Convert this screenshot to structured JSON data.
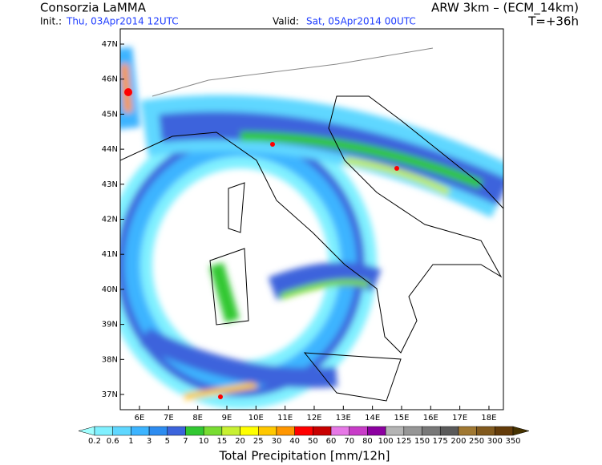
{
  "header": {
    "left_title": "Consorzia LaMMA",
    "right_title": "ARW 3km – (ECM_14km)",
    "init_label": "Init.:",
    "init_value": "Thu, 03Apr2014 12UTC",
    "valid_label": "Valid:",
    "valid_value": "Sat, 05Apr2014 00UTC",
    "lead_time": "T=+36h"
  },
  "map": {
    "lat_ticks": [
      {
        "value": 47,
        "label": "47N"
      },
      {
        "value": 46,
        "label": "46N"
      },
      {
        "value": 45,
        "label": "45N"
      },
      {
        "value": 44,
        "label": "44N"
      },
      {
        "value": 43,
        "label": "43N"
      },
      {
        "value": 42,
        "label": "42N"
      },
      {
        "value": 41,
        "label": "41N"
      },
      {
        "value": 40,
        "label": "40N"
      },
      {
        "value": 39,
        "label": "39N"
      },
      {
        "value": 38,
        "label": "38N"
      },
      {
        "value": 37,
        "label": "37N"
      }
    ],
    "lon_ticks": [
      {
        "value": 6,
        "label": "6E"
      },
      {
        "value": 7,
        "label": "7E"
      },
      {
        "value": 8,
        "label": "8E"
      },
      {
        "value": 9,
        "label": "9E"
      },
      {
        "value": 10,
        "label": "10E"
      },
      {
        "value": 11,
        "label": "11E"
      },
      {
        "value": 12,
        "label": "12E"
      },
      {
        "value": 13,
        "label": "13E"
      },
      {
        "value": 14,
        "label": "14E"
      },
      {
        "value": 15,
        "label": "15E"
      },
      {
        "value": 16,
        "label": "16E"
      },
      {
        "value": 17,
        "label": "17E"
      },
      {
        "value": 18,
        "label": "18E"
      }
    ]
  },
  "colorbar": {
    "title": "Total Precipitation [mm/12h]",
    "levels": [
      0.2,
      0.6,
      1,
      3,
      5,
      7,
      10,
      15,
      20,
      25,
      30,
      40,
      50,
      60,
      70,
      80,
      100,
      125,
      150,
      175,
      200,
      250,
      300,
      350
    ],
    "colors": [
      "#a0ffff",
      "#80f0ff",
      "#5fd7ff",
      "#3cb4ff",
      "#2d8cf0",
      "#3c64dc",
      "#32c832",
      "#78dc32",
      "#c8f032",
      "#ffff00",
      "#ffc800",
      "#ff9600",
      "#ff0000",
      "#c80000",
      "#e678e6",
      "#c83cc8",
      "#8c00a0",
      "#b4b4b4",
      "#969696",
      "#787878",
      "#5a5a5a",
      "#a07832",
      "#825a1e",
      "#643c0a",
      "#463200"
    ]
  }
}
